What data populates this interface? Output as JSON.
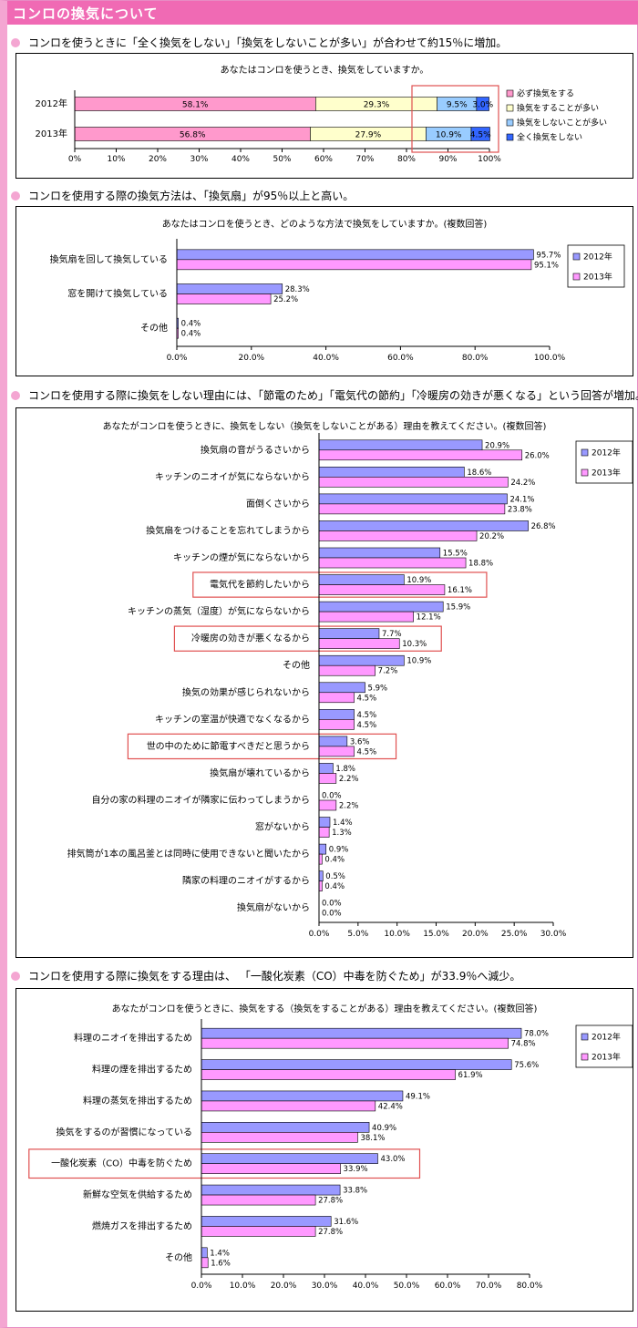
{
  "page_title": "コンロの換気について",
  "sections": [
    {
      "heading": "コンロを使うときに「全く換気をしない」「換気をしないことが多い」が合わせて約15％に増加。"
    },
    {
      "heading": "コンロを使用する際の換気方法は、「換気扇」が95％以上と高い。"
    },
    {
      "heading": "コンロを使用する際に換気をしない理由には、「節電のため」「電気代の節約」「冷暖房の効きが悪くなる」という回答が増加。"
    },
    {
      "heading": "コンロを使用する際に換気をする理由は、 「一酸化炭素（CO）中毒を防ぐため」が33.9％へ減少。"
    }
  ],
  "colors": {
    "s2012": "#9999ff",
    "s2013": "#ff99ff",
    "highlight": "#e05050",
    "accent": "#f06ab4"
  },
  "chart_data": [
    {
      "type": "bar",
      "orientation": "horizontal",
      "stacked": true,
      "title": "あなたはコンロを使うとき、換気をしていますか。",
      "categories": [
        "2012年",
        "2013年"
      ],
      "series": [
        {
          "name": "必ず換気をする",
          "color": "#ff99cc",
          "values": [
            58.1,
            56.8
          ]
        },
        {
          "name": "換気をすることが多い",
          "color": "#ffffcc",
          "values": [
            29.3,
            27.9
          ]
        },
        {
          "name": "換気をしないことが多い",
          "color": "#99ccff",
          "values": [
            9.5,
            10.9
          ]
        },
        {
          "name": "全く換気をしない",
          "color": "#3366ff",
          "values": [
            3.0,
            4.5
          ]
        }
      ],
      "xlim": [
        0,
        100
      ],
      "xticks": [
        "0%",
        "10%",
        "20%",
        "30%",
        "40%",
        "50%",
        "60%",
        "70%",
        "80%",
        "90%",
        "100%"
      ],
      "legend": "right"
    },
    {
      "type": "bar",
      "orientation": "horizontal",
      "title": "あなたはコンロを使うとき、どのような方法で換気をしていますか。(複数回答)",
      "categories": [
        "換気扇を回して換気している",
        "窓を開けて換気している",
        "その他"
      ],
      "series": [
        {
          "name": "2012年",
          "values": [
            95.7,
            28.3,
            0.4
          ]
        },
        {
          "name": "2013年",
          "values": [
            95.1,
            25.2,
            0.4
          ]
        }
      ],
      "xlim": [
        0,
        100
      ],
      "xticks": [
        "0.0%",
        "20.0%",
        "40.0%",
        "60.0%",
        "80.0%",
        "100.0%"
      ],
      "legend": "right"
    },
    {
      "type": "bar",
      "orientation": "horizontal",
      "title": "あなたがコンロを使うときに、換気をしない（換気をしないことがある）理由を教えてください。(複数回答)",
      "categories": [
        "換気扇の音がうるさいから",
        "キッチンのニオイが気にならないから",
        "面倒くさいから",
        "換気扇をつけることを忘れてしまうから",
        "キッチンの煙が気にならないから",
        "電気代を節約したいから",
        "キッチンの蒸気（湿度）が気にならないから",
        "冷暖房の効きが悪くなるから",
        "その他",
        "換気の効果が感じられないから",
        "キッチンの室温が快適でなくなるから",
        "世の中のために節電すべきだと思うから",
        "換気扇が壊れているから",
        "自分の家の料理のニオイが隣家に伝わってしまうから",
        "窓がないから",
        "排気筒が1本の風呂釜とは同時に使用できないと聞いたから",
        "隣家の料理のニオイがするから",
        "換気扇がないから"
      ],
      "series": [
        {
          "name": "2012年",
          "values": [
            20.9,
            18.6,
            24.1,
            26.8,
            15.5,
            10.9,
            15.9,
            7.7,
            10.9,
            5.9,
            4.5,
            3.6,
            1.8,
            0.0,
            1.4,
            0.9,
            0.5,
            0.0
          ]
        },
        {
          "name": "2013年",
          "values": [
            26.0,
            24.2,
            23.8,
            20.2,
            18.8,
            16.1,
            12.1,
            10.3,
            7.2,
            4.5,
            4.5,
            4.5,
            2.2,
            2.2,
            1.3,
            0.4,
            0.4,
            0.0
          ]
        }
      ],
      "highlighted": [
        5,
        7,
        11
      ],
      "xlim": [
        0,
        30
      ],
      "xticks": [
        "0.0%",
        "5.0%",
        "10.0%",
        "15.0%",
        "20.0%",
        "25.0%",
        "30.0%"
      ],
      "legend": "right"
    },
    {
      "type": "bar",
      "orientation": "horizontal",
      "title": "あなたがコンロを使うときに、換気をする（換気をすることがある）理由を教えてください。(複数回答)",
      "categories": [
        "料理のニオイを排出するため",
        "料理の煙を排出するため",
        "料理の蒸気を排出するため",
        "換気をするのが習慣になっている",
        "一酸化炭素（CO）中毒を防ぐため",
        "新鮮な空気を供給するため",
        "燃焼ガスを排出するため",
        "その他"
      ],
      "series": [
        {
          "name": "2012年",
          "values": [
            78.0,
            75.6,
            49.1,
            40.9,
            43.0,
            33.8,
            31.6,
            1.4
          ]
        },
        {
          "name": "2013年",
          "values": [
            74.8,
            61.9,
            42.4,
            38.1,
            33.9,
            27.8,
            27.8,
            1.6
          ]
        }
      ],
      "highlighted": [
        4
      ],
      "xlim": [
        0,
        80
      ],
      "xticks": [
        "0.0%",
        "10.0%",
        "20.0%",
        "30.0%",
        "40.0%",
        "50.0%",
        "60.0%",
        "70.0%",
        "80.0%"
      ],
      "legend": "right"
    }
  ]
}
